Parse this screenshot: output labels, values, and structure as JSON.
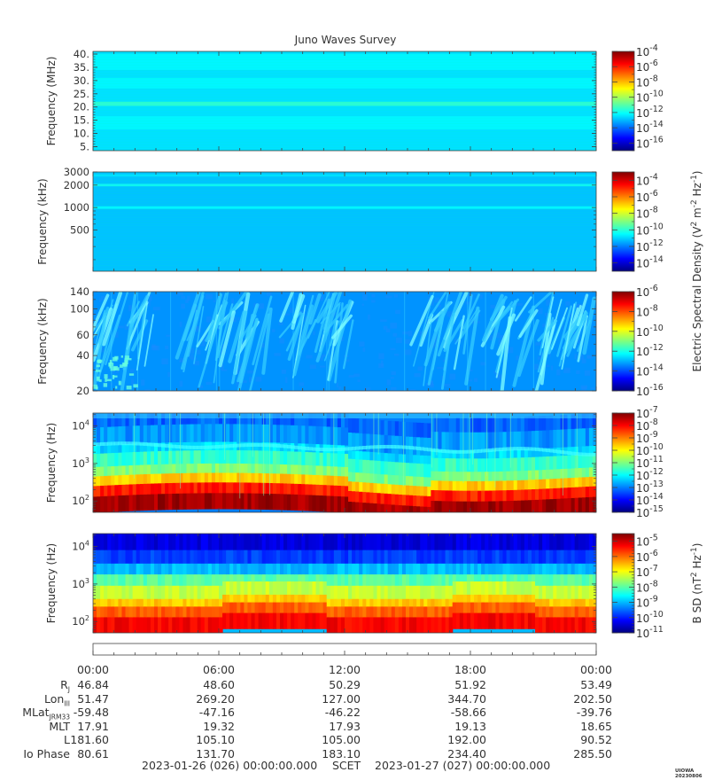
{
  "title": "Juno Waves Survey",
  "credit": "UIOWA 20230806",
  "colors": {
    "jet": [
      "#00007f",
      "#0000ff",
      "#007fff",
      "#00ffff",
      "#7fff7f",
      "#ffff00",
      "#ff7f00",
      "#ff0000",
      "#7f0000"
    ]
  },
  "chart_data": [
    {
      "type": "heatmap",
      "id": "p1",
      "ylabel": "Frequency (MHz)",
      "yscale": "linear",
      "ylim": [
        3.5,
        41
      ],
      "yticks": [
        {
          "v": 5,
          "label": "5."
        },
        {
          "v": 10,
          "label": "10."
        },
        {
          "v": 15,
          "label": "15."
        },
        {
          "v": 20,
          "label": "20."
        },
        {
          "v": 25,
          "label": "25."
        },
        {
          "v": 30,
          "label": "30."
        },
        {
          "v": 35,
          "label": "35."
        },
        {
          "v": 40,
          "label": "40."
        }
      ],
      "cbar": {
        "min": -17,
        "max": -4,
        "major": [
          {
            "v": -4,
            "label": "-4"
          },
          {
            "v": -6,
            "label": "-6"
          },
          {
            "v": -8,
            "label": "-8"
          },
          {
            "v": -10,
            "label": "-10"
          },
          {
            "v": -12,
            "label": "-12"
          },
          {
            "v": -14,
            "label": "-14"
          },
          {
            "v": -16,
            "label": "-16"
          }
        ],
        "minorStep": 1
      },
      "background_level": -12.5,
      "bands": [
        {
          "y": 21.2,
          "width": 1.6,
          "level": -11.5
        },
        {
          "y": 29,
          "width": 4,
          "level": -12.2
        },
        {
          "y": 37,
          "width": 6,
          "level": -12.2
        },
        {
          "y": 14,
          "width": 5,
          "level": -12.2
        }
      ]
    },
    {
      "type": "heatmap",
      "id": "p2",
      "ylabel": "Frequency (kHz)",
      "yscale": "log",
      "ylim": [
        140,
        3000
      ],
      "yticks": [
        {
          "v": 500,
          "label": "500"
        },
        {
          "v": 1000,
          "label": "1000"
        },
        {
          "v": 2000,
          "label": "2000"
        },
        {
          "v": 3000,
          "label": "3000"
        }
      ],
      "minor_ticks": [
        200,
        300,
        400,
        600,
        700,
        800,
        900
      ],
      "cbar": {
        "min": -15,
        "max": -3,
        "major": [
          {
            "v": -4,
            "label": "-4"
          },
          {
            "v": -6,
            "label": "-6"
          },
          {
            "v": -8,
            "label": "-8"
          },
          {
            "v": -10,
            "label": "-10"
          },
          {
            "v": -12,
            "label": "-12"
          },
          {
            "v": -14,
            "label": "-14"
          }
        ],
        "minorStep": 1
      },
      "background_level": -11.2,
      "bands": [
        {
          "y": 2000,
          "width": 150,
          "level": -10.3
        },
        {
          "y": 1000,
          "width": 80,
          "level": -10.5
        },
        {
          "y": 2700,
          "width": 200,
          "level": -10.8
        }
      ]
    },
    {
      "type": "heatmap",
      "id": "p3",
      "ylabel": "Frequency (kHz)",
      "yscale": "log",
      "ylim": [
        20,
        140
      ],
      "yticks": [
        {
          "v": 20,
          "label": "20"
        },
        {
          "v": 40,
          "label": "40"
        },
        {
          "v": 60,
          "label": "60"
        },
        {
          "v": 100,
          "label": "100"
        },
        {
          "v": 140,
          "label": "140"
        }
      ],
      "minor_ticks": [
        30,
        50,
        70,
        80,
        90,
        120
      ],
      "cbar": {
        "min": -16,
        "max": -6,
        "major": [
          {
            "v": -6,
            "label": "-6"
          },
          {
            "v": -8,
            "label": "-8"
          },
          {
            "v": -10,
            "label": "-10"
          },
          {
            "v": -12,
            "label": "-12"
          },
          {
            "v": -14,
            "label": "-14"
          },
          {
            "v": -16,
            "label": "-16"
          }
        ],
        "minorStep": 1
      },
      "background_level": -13.3,
      "burst_regions_hours": [
        [
          0.5,
          3
        ],
        [
          4.5,
          8.5
        ],
        [
          9.5,
          12.5
        ],
        [
          16,
          18.5
        ],
        [
          19.5,
          24
        ]
      ]
    },
    {
      "type": "heatmap",
      "id": "p4",
      "ylabel": "Frequency (Hz)",
      "yscale": "log",
      "ylim": [
        50,
        22000
      ],
      "yticks": [
        {
          "v": 100,
          "label": "10",
          "sup": "2"
        },
        {
          "v": 1000,
          "label": "10",
          "sup": "3"
        },
        {
          "v": 10000,
          "label": "10",
          "sup": "4"
        }
      ],
      "cbar": {
        "min": -15,
        "max": -7,
        "major": [
          {
            "v": -7,
            "label": "-7"
          },
          {
            "v": -8,
            "label": "-8"
          },
          {
            "v": -9,
            "label": "-9"
          },
          {
            "v": -10,
            "label": "-10"
          },
          {
            "v": -11,
            "label": "-11"
          },
          {
            "v": -12,
            "label": "-12"
          },
          {
            "v": -13,
            "label": "-13"
          },
          {
            "v": -14,
            "label": "-14"
          },
          {
            "v": -15,
            "label": "-15"
          }
        ],
        "minorStep": 0.5
      },
      "background_level": -13
    },
    {
      "type": "heatmap",
      "id": "p5",
      "ylabel": "Frequency (Hz)",
      "yscale": "log",
      "ylim": [
        50,
        22000
      ],
      "yticks": [
        {
          "v": 100,
          "label": "10",
          "sup": "2"
        },
        {
          "v": 1000,
          "label": "10",
          "sup": "3"
        },
        {
          "v": 10000,
          "label": "10",
          "sup": "4"
        }
      ],
      "cbar": {
        "min": -11,
        "max": -4.5,
        "major": [
          {
            "v": -5,
            "label": "-5"
          },
          {
            "v": -6,
            "label": "-6"
          },
          {
            "v": -7,
            "label": "-7"
          },
          {
            "v": -8,
            "label": "-8"
          },
          {
            "v": -9,
            "label": "-9"
          },
          {
            "v": -10,
            "label": "-10"
          },
          {
            "v": -11,
            "label": "-11"
          }
        ],
        "minorStep": 0.2
      },
      "background_level": -9
    }
  ],
  "cbar_labels": {
    "electric": {
      "pre": "Electric Spectral Density (V",
      "sup1": "2",
      "mid": " m",
      "sup2": "-2",
      "mid2": " Hz",
      "sup3": "-1",
      "post": ")"
    },
    "magnetic": {
      "pre": "B SD (nT",
      "sup1": "2",
      "mid": " Hz",
      "sup2": "-1",
      "post": ")"
    }
  },
  "xaxis": {
    "hours": [
      0,
      6,
      12,
      18,
      24
    ],
    "labels": [
      "00:00",
      "06:00",
      "12:00",
      "18:00",
      "00:00"
    ]
  },
  "ephemeris": {
    "rows": [
      {
        "label": "R",
        "sub": "J",
        "values": [
          "46.84",
          "48.60",
          "50.29",
          "51.92",
          "53.49"
        ]
      },
      {
        "label": "Lon",
        "sub": "III",
        "values": [
          "51.47",
          "269.20",
          "127.00",
          "344.70",
          "202.50"
        ]
      },
      {
        "label": "MLat",
        "sub": "JRM33",
        "values": [
          "-59.48",
          "-47.16",
          "-46.22",
          "-58.66",
          "-39.76"
        ]
      },
      {
        "label": "MLT",
        "sub": "",
        "values": [
          "17.91",
          "19.32",
          "17.93",
          "19.13",
          "18.65"
        ]
      },
      {
        "label": "L",
        "sub": "",
        "values": [
          "181.60",
          "105.10",
          "105.00",
          "192.00",
          "90.52"
        ]
      },
      {
        "label": "Io Phase",
        "sub": "",
        "values": [
          "80.61",
          "131.70",
          "183.10",
          "234.40",
          "285.50"
        ]
      }
    ]
  },
  "footer": {
    "start": "2023-01-26 (026) 00:00:00.000",
    "scet": "SCET",
    "end": "2023-01-27 (027) 00:00:00.000"
  }
}
